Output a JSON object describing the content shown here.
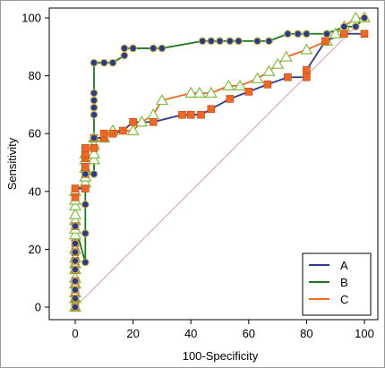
{
  "chart_data": {
    "type": "line",
    "xlabel": "100-Specificity",
    "ylabel": "Sensitivity",
    "xlim": [
      0,
      100
    ],
    "ylim": [
      0,
      100
    ],
    "xticks": [
      "0",
      "20",
      "40",
      "60",
      "80",
      "100"
    ],
    "yticks": [
      "0",
      "20",
      "40",
      "60",
      "80",
      "100"
    ],
    "grid": false,
    "legend_position": "bottom-right",
    "reference_line": {
      "x": [
        0,
        100
      ],
      "y": [
        0,
        100
      ],
      "color": "#d9a0b4"
    },
    "series": [
      {
        "name": "A",
        "color": "#2b3990",
        "marker": "square",
        "marker_color": "#f26522",
        "x": [
          0,
          0,
          0,
          0,
          0,
          0,
          0,
          0,
          0,
          0,
          0,
          3.5,
          3.5,
          3.5,
          3.5,
          3.5,
          3.5,
          6.5,
          6.5,
          10,
          10,
          13,
          16.5,
          20,
          27,
          37,
          40,
          43.5,
          47,
          53.5,
          60,
          66.5,
          73.5,
          80,
          80,
          86.5,
          93,
          100
        ],
        "y": [
          0,
          3,
          6,
          9,
          13,
          16,
          19,
          22,
          28,
          38,
          41,
          41,
          46,
          48.5,
          51.5,
          53,
          55,
          55,
          58.5,
          58.5,
          60,
          60,
          61,
          64,
          64,
          66.5,
          66.5,
          66.5,
          68.5,
          72,
          74.5,
          77,
          79.5,
          79.5,
          82,
          92,
          94.5,
          94.5
        ]
      },
      {
        "name": "B",
        "color": "#1a7a1a",
        "marker": "circle",
        "marker_color": "#2b3990",
        "x": [
          0,
          0,
          0,
          0,
          0,
          0,
          0,
          0,
          0,
          3.5,
          3.5,
          3.5,
          3.5,
          6.5,
          6.5,
          6.5,
          6.5,
          6.5,
          6.5,
          6.5,
          10,
          13,
          17,
          17,
          20,
          20,
          27,
          30,
          44,
          47,
          50,
          53.5,
          56.5,
          63,
          67,
          73.5,
          77,
          80,
          87,
          93,
          97,
          100
        ],
        "y": [
          0,
          3,
          6,
          9,
          13,
          16,
          19,
          22,
          28,
          15.5,
          25.5,
          35.5,
          46,
          46,
          58.5,
          66.5,
          69,
          71.5,
          74,
          84.5,
          84.5,
          84.5,
          87,
          89.5,
          89.5,
          89.5,
          89.5,
          89.5,
          92,
          92,
          92,
          92,
          92,
          92,
          92,
          94.5,
          94.5,
          94.5,
          94.5,
          97,
          97,
          100
        ]
      },
      {
        "name": "C",
        "color": "#f26522",
        "marker": "triangle",
        "marker_color": "#7fbf3f",
        "x": [
          0,
          0,
          0,
          0,
          0,
          0,
          0,
          0,
          0,
          0,
          0,
          0,
          0,
          0,
          0,
          0,
          3.5,
          3.5,
          3.5,
          3.5,
          3.5,
          6.5,
          6.5,
          6.5,
          6.5,
          10,
          13,
          20,
          23,
          27,
          30,
          40,
          43,
          47,
          53,
          57,
          63,
          67,
          70,
          73,
          80,
          87,
          90,
          93,
          97,
          100
        ],
        "y": [
          0,
          3,
          5,
          8,
          10,
          13,
          15,
          17,
          20,
          25,
          27,
          30,
          32,
          35,
          37,
          40,
          43,
          45,
          48,
          51,
          53,
          51,
          53,
          56,
          58.5,
          58.5,
          61,
          61,
          64,
          66.5,
          71.5,
          74,
          74,
          74,
          76.5,
          76.5,
          79,
          81.5,
          84,
          86.5,
          89,
          92,
          94.5,
          97,
          100,
          100
        ]
      }
    ]
  }
}
